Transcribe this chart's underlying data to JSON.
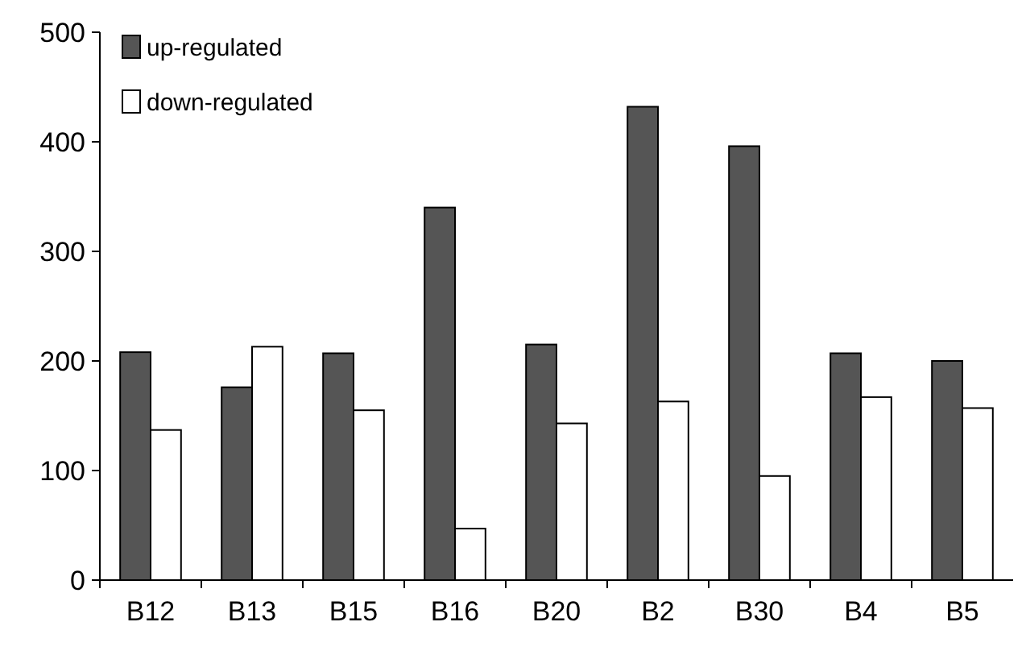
{
  "chart_data": {
    "type": "bar",
    "categories": [
      "B12",
      "B13",
      "B15",
      "B16",
      "B20",
      "B2",
      "B30",
      "B4",
      "B5"
    ],
    "series": [
      {
        "name": "up-regulated",
        "color": "#555555",
        "values": [
          208,
          176,
          207,
          340,
          215,
          432,
          396,
          207,
          200
        ]
      },
      {
        "name": "down-regulated",
        "color": "#ffffff",
        "values": [
          137,
          213,
          155,
          47,
          143,
          163,
          95,
          167,
          157
        ]
      }
    ],
    "ylim": [
      0,
      500
    ],
    "yticks": [
      0,
      100,
      200,
      300,
      400,
      500
    ],
    "grid": false,
    "legend": "top left"
  }
}
